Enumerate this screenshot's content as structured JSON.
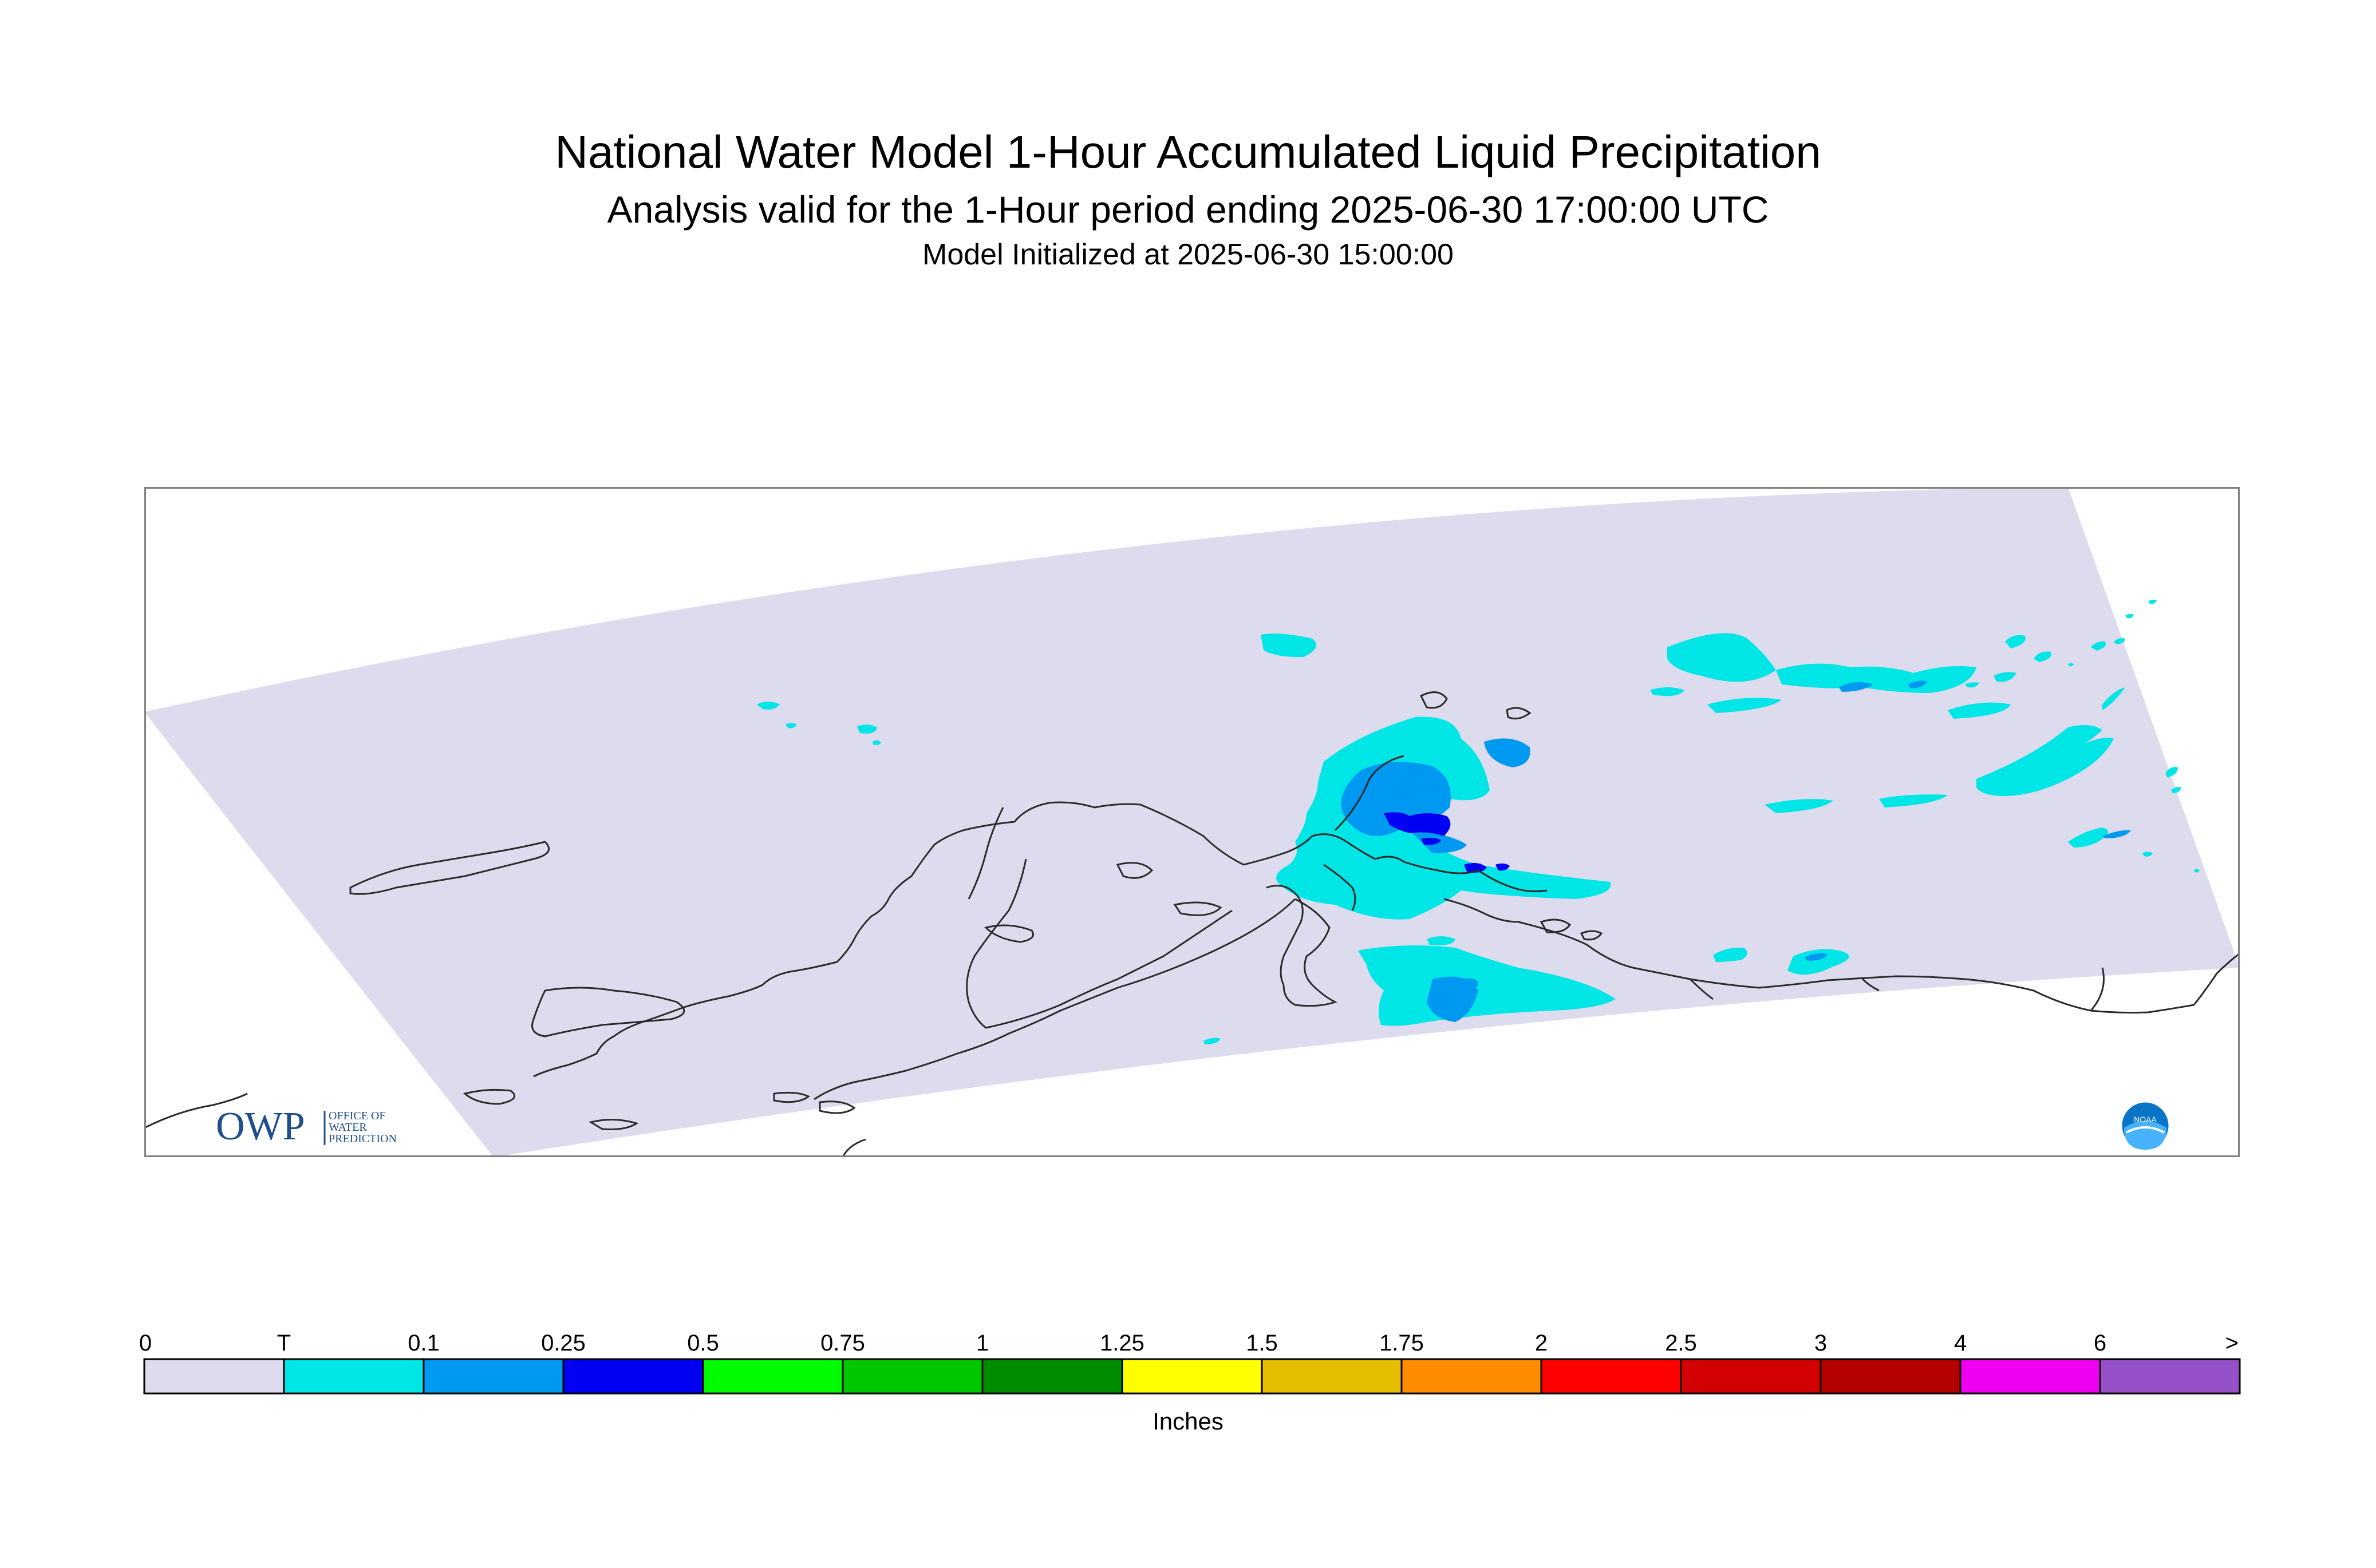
{
  "title": "National Water Model 1-Hour Accumulated Liquid Precipitation",
  "subtitle": "Analysis valid for the 1-Hour period ending 2025-06-30 17:00:00 UTC",
  "init_line": "Model Initialized at 2025-06-30 15:00:00",
  "logos": {
    "owp_text": "OWP",
    "owp_sub": [
      "OFFICE OF",
      "WATER",
      "PREDICTION"
    ],
    "noaa_text": "NOAA"
  },
  "colors": {
    "domain_fill": "#dcdcee",
    "coastline": "#2b2b2b",
    "frame": "#808080",
    "owp_blue": "#1f4e8c",
    "noaa_blue": "#0a74c9"
  },
  "legend": {
    "unit": "Inches",
    "ticks": [
      "0",
      "T",
      "0.1",
      "0.25",
      "0.5",
      "0.75",
      "1",
      "1.25",
      "1.5",
      "1.75",
      "2",
      "2.5",
      "3",
      "4",
      "6",
      ">"
    ],
    "colors": [
      "#dcdcee",
      "#00e5e5",
      "#0099f2",
      "#0000f2",
      "#00fa00",
      "#00c800",
      "#008c00",
      "#ffff00",
      "#e6be00",
      "#ff8c00",
      "#ff0000",
      "#d20000",
      "#b40000",
      "#f000f0",
      "#9650c8"
    ]
  }
}
